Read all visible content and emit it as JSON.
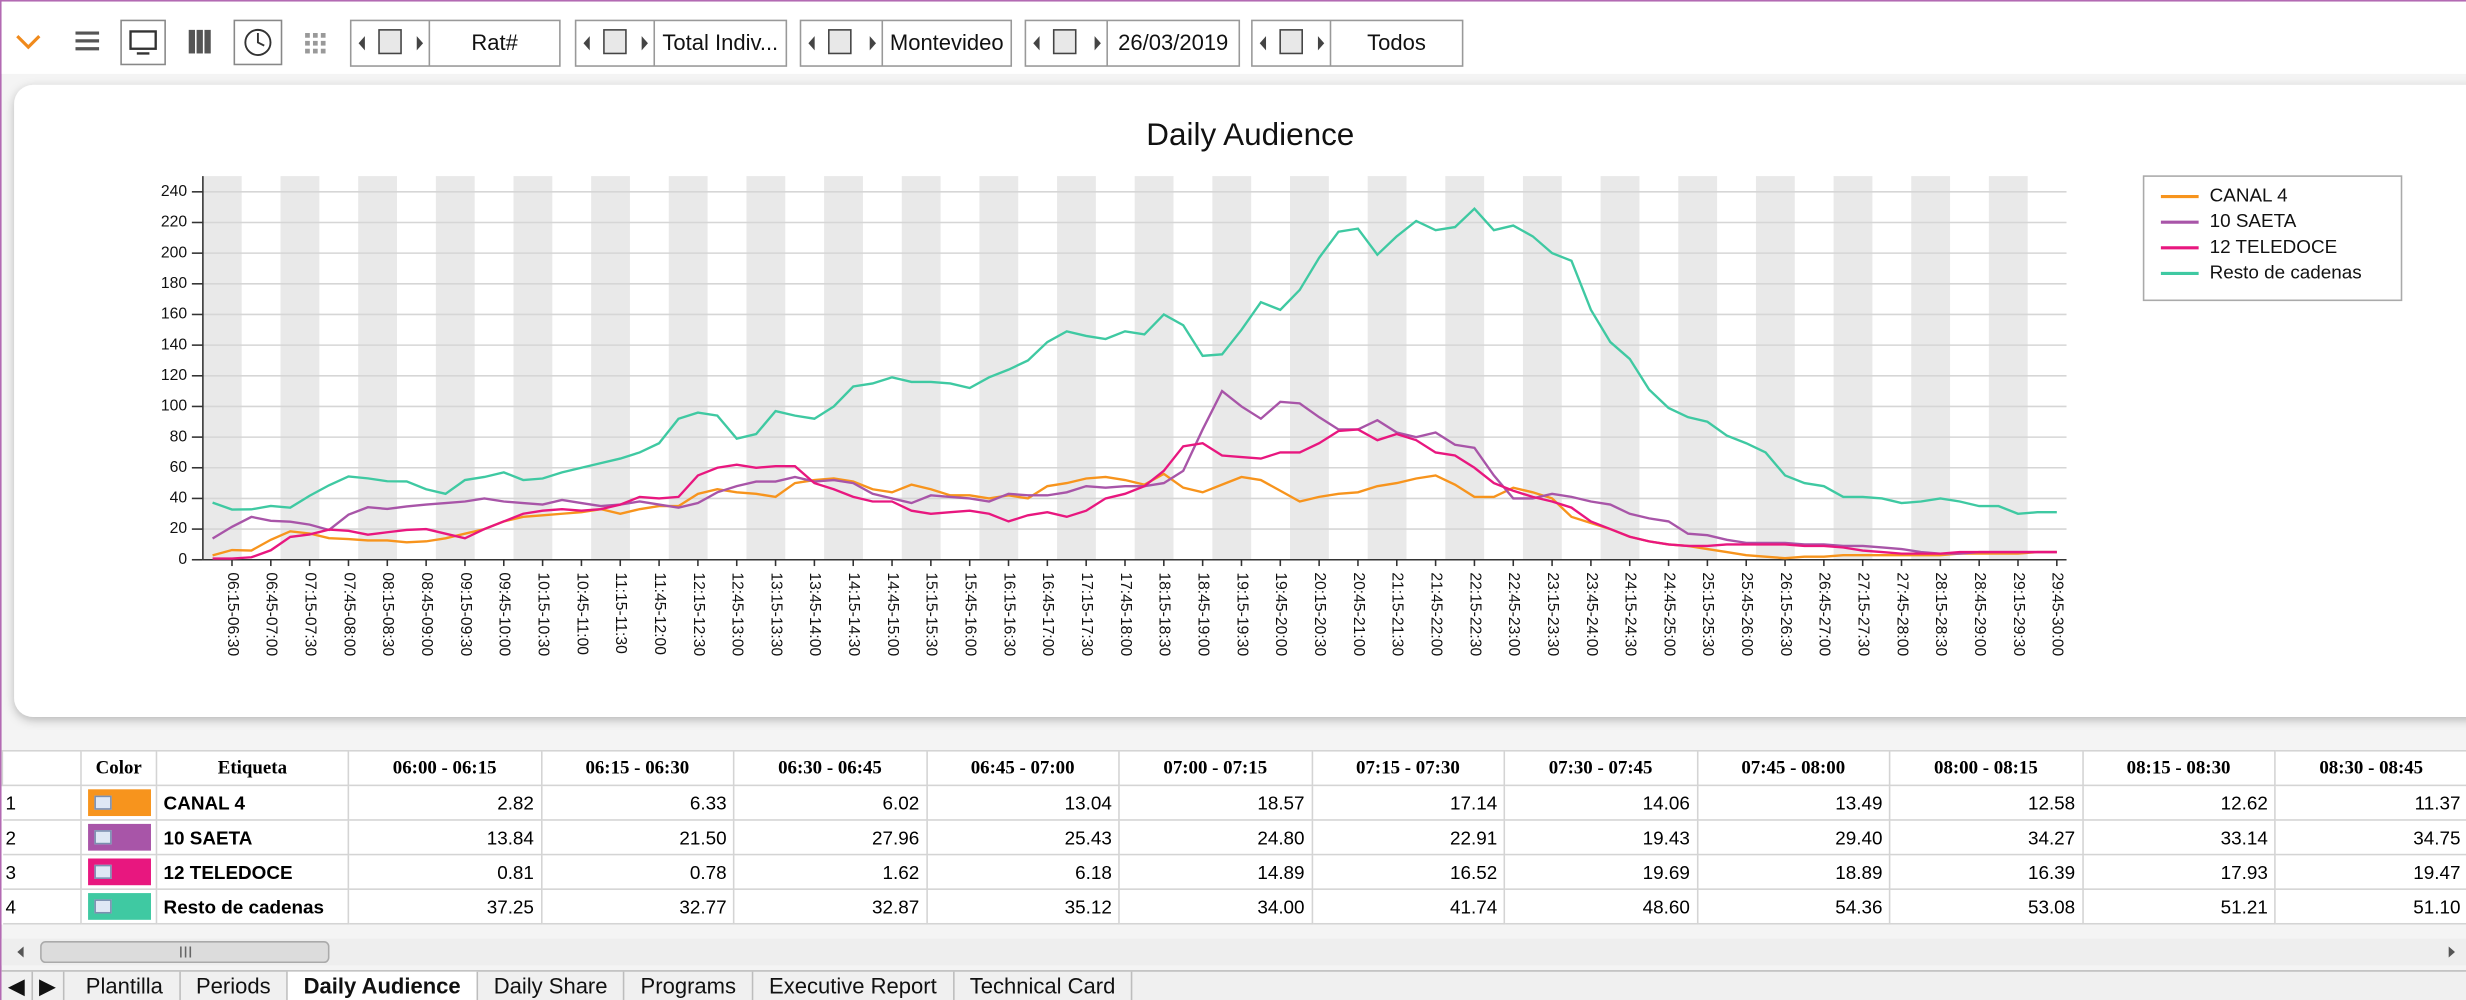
{
  "toolbar": {
    "measure": "Rat#",
    "target": "Total Indiv...",
    "region": "Montevideo",
    "date": "26/03/2019",
    "filter": "Todos"
  },
  "chart_data": {
    "type": "line",
    "title": "Daily Audience",
    "categories": [
      null,
      "06:15-06:30",
      null,
      "06:45-07:00",
      null,
      "07:15-07:30",
      null,
      "07:45-08:00",
      null,
      "08:15-08:30",
      null,
      "08:45-09:00",
      null,
      "09:15-09:30",
      null,
      "09:45-10:00",
      null,
      "10:15-10:30",
      null,
      "10:45-11:00",
      null,
      "11:15-11:30",
      null,
      "11:45-12:00",
      null,
      "12:15-12:30",
      null,
      "12:45-13:00",
      null,
      "13:15-13:30",
      null,
      "13:45-14:00",
      null,
      "14:15-14:30",
      null,
      "14:45-15:00",
      null,
      "15:15-15:30",
      null,
      "15:45-16:00",
      null,
      "16:15-16:30",
      null,
      "16:45-17:00",
      null,
      "17:15-17:30",
      null,
      "17:45-18:00",
      null,
      "18:15-18:30",
      null,
      "18:45-19:00",
      null,
      "19:15-19:30",
      null,
      "19:45-20:00",
      null,
      "20:15-20:30",
      null,
      "20:45-21:00",
      null,
      "21:15-21:30",
      null,
      "21:45-22:00",
      null,
      "22:15-22:30",
      null,
      "22:45-23:00",
      null,
      "23:15-23:30",
      null,
      "23:45-24:00",
      null,
      "24:15-24:30",
      null,
      "24:45-25:00",
      null,
      "25:15-25:30",
      null,
      "25:45-26:00",
      null,
      "26:15-26:30",
      null,
      "26:45-27:00",
      null,
      "27:15-27:30",
      null,
      "27:45-28:00",
      null,
      "28:15-28:30",
      null,
      "28:45-29:00",
      null,
      "29:15-29:30",
      null,
      "29:45-30:00"
    ],
    "series": [
      {
        "name": "CANAL 4",
        "color": "#f7941d",
        "values": [
          2.82,
          6.33,
          6.02,
          13.04,
          18.57,
          17.14,
          14.06,
          13.49,
          12.58,
          12.62,
          11.37,
          12,
          14,
          17,
          20,
          25,
          28,
          29,
          30,
          31,
          33,
          30,
          33,
          35,
          35,
          43,
          46,
          44,
          43,
          41,
          50,
          52,
          53,
          51,
          46,
          44,
          49,
          46,
          42,
          42,
          40,
          42,
          40,
          48,
          50,
          53,
          54,
          52,
          49,
          56,
          47,
          44,
          49,
          54,
          52,
          45,
          38,
          41,
          43,
          44,
          48,
          50,
          53,
          55,
          49,
          41,
          41,
          47,
          44,
          40,
          28,
          24,
          20,
          15,
          12,
          10,
          9,
          7,
          5,
          3,
          2,
          1,
          2,
          2,
          3,
          3,
          3,
          3,
          3,
          3,
          4,
          4,
          4,
          4,
          5,
          5
        ]
      },
      {
        "name": "10 SAETA",
        "color": "#a855a8",
        "values": [
          13.84,
          21.5,
          27.96,
          25.43,
          24.8,
          22.91,
          19.43,
          29.4,
          34.27,
          33.14,
          34.75,
          36,
          37,
          38,
          40,
          38,
          37,
          36,
          39,
          37,
          35,
          36,
          38,
          36,
          34,
          37,
          44,
          48,
          51,
          51,
          54,
          51,
          52,
          50,
          43,
          40,
          37,
          42,
          41,
          40,
          38,
          43,
          42,
          42,
          44,
          48,
          47,
          48,
          48,
          50,
          58,
          85,
          110,
          100,
          92,
          103,
          102,
          93,
          85,
          85,
          91,
          83,
          80,
          83,
          75,
          73,
          55,
          40,
          40,
          43,
          41,
          38,
          36,
          30,
          27,
          25,
          17,
          16,
          13,
          11,
          11,
          11,
          10,
          10,
          9,
          9,
          8,
          7,
          5,
          4,
          4,
          5,
          5,
          5,
          5,
          5
        ]
      },
      {
        "name": "12 TELEDOCE",
        "color": "#e8177f",
        "values": [
          0.81,
          0.78,
          1.62,
          6.18,
          14.89,
          16.52,
          19.69,
          18.89,
          16.39,
          17.93,
          19.47,
          20,
          17,
          14,
          20,
          25,
          30,
          32,
          33,
          32,
          33,
          36,
          41,
          40,
          41,
          55,
          60,
          62,
          60,
          61,
          61,
          50,
          46,
          41,
          38,
          38,
          32,
          30,
          31,
          32,
          30,
          25,
          29,
          31,
          28,
          32,
          40,
          43,
          48,
          58,
          74,
          76,
          68,
          67,
          66,
          70,
          70,
          76,
          84,
          85,
          78,
          82,
          78,
          70,
          68,
          60,
          50,
          45,
          41,
          38,
          34,
          25,
          20,
          15,
          12,
          10,
          9,
          9,
          10,
          10,
          10,
          10,
          9,
          9,
          8,
          6,
          5,
          4,
          4,
          4,
          5,
          5,
          5,
          5,
          5,
          5
        ]
      },
      {
        "name": "Resto de cadenas",
        "color": "#3fc9a2",
        "values": [
          37.25,
          32.77,
          32.87,
          35.12,
          34.0,
          41.74,
          48.6,
          54.36,
          53.08,
          51.21,
          51.1,
          46,
          43,
          52,
          54,
          57,
          52,
          53,
          57,
          60,
          63,
          66,
          70,
          76,
          92,
          96,
          94,
          79,
          82,
          97,
          94,
          92,
          100,
          113,
          115,
          119,
          116,
          116,
          115,
          112,
          119,
          124,
          130,
          142,
          149,
          146,
          144,
          149,
          147,
          160,
          153,
          133,
          134,
          150,
          168,
          163,
          176,
          197,
          214,
          216,
          199,
          211,
          221,
          215,
          217,
          229,
          215,
          218,
          211,
          200,
          195,
          163,
          142,
          131,
          111,
          99,
          93,
          90,
          81,
          76,
          70,
          55,
          50,
          48,
          41,
          41,
          40,
          37,
          38,
          40,
          38,
          35,
          35,
          30,
          31,
          31
        ]
      }
    ],
    "ylim": [
      0,
      240
    ],
    "yticks": [
      0,
      20,
      40,
      60,
      80,
      100,
      120,
      140,
      160,
      180,
      200,
      220,
      240
    ],
    "grid": true,
    "legend": "upper right"
  },
  "table": {
    "headers": [
      "Color",
      "Etiqueta",
      "06:00 - 06:15",
      "06:15 - 06:30",
      "06:30 - 06:45",
      "06:45 - 07:00",
      "07:00 - 07:15",
      "07:15 - 07:30",
      "07:30 - 07:45",
      "07:45 - 08:00",
      "08:00 - 08:15",
      "08:15 - 08:30",
      "08:30 - 08:45"
    ],
    "rows": [
      {
        "number": "1",
        "label": "CANAL 4",
        "values": [
          "2.82",
          "6.33",
          "6.02",
          "13.04",
          "18.57",
          "17.14",
          "14.06",
          "13.49",
          "12.58",
          "12.62",
          "11.37"
        ]
      },
      {
        "number": "2",
        "label": "10 SAETA",
        "values": [
          "13.84",
          "21.50",
          "27.96",
          "25.43",
          "24.80",
          "22.91",
          "19.43",
          "29.40",
          "34.27",
          "33.14",
          "34.75"
        ]
      },
      {
        "number": "3",
        "label": "12 TELEDOCE",
        "values": [
          "0.81",
          "0.78",
          "1.62",
          "6.18",
          "14.89",
          "16.52",
          "19.69",
          "18.89",
          "16.39",
          "17.93",
          "19.47"
        ]
      },
      {
        "number": "4",
        "label": "Resto de cadenas",
        "values": [
          "37.25",
          "32.77",
          "32.87",
          "35.12",
          "34.00",
          "41.74",
          "48.60",
          "54.36",
          "53.08",
          "51.21",
          "51.10"
        ]
      }
    ]
  },
  "tabs": [
    "Plantilla",
    "Periods",
    "Daily Audience",
    "Daily Share",
    "Programs",
    "Executive Report",
    "Technical Card"
  ],
  "active_tab": 2
}
